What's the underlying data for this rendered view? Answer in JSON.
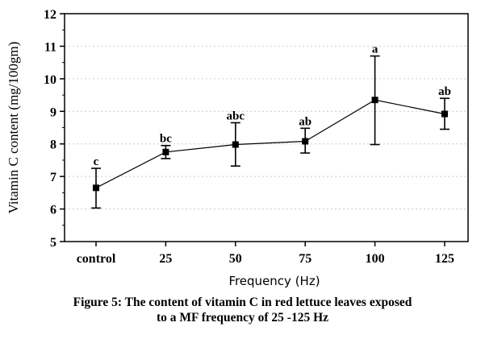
{
  "chart_data": {
    "type": "line",
    "title": "",
    "xlabel": "Frequency (Hz)",
    "ylabel": "Vitamin C content (mg/100gm)",
    "categories": [
      "control",
      "25",
      "50",
      "75",
      "100",
      "125"
    ],
    "values": [
      6.65,
      7.75,
      7.98,
      8.08,
      9.35,
      8.92
    ],
    "error_lower": [
      6.03,
      7.55,
      7.32,
      7.72,
      7.98,
      8.45
    ],
    "error_upper": [
      7.25,
      7.95,
      8.65,
      8.48,
      10.7,
      9.4
    ],
    "significance_labels": [
      "c",
      "bc",
      "abc",
      "ab",
      "a",
      "ab"
    ],
    "yticks": [
      "5",
      "6",
      "7",
      "8",
      "9",
      "10",
      "11",
      "12"
    ],
    "ylim": [
      5,
      12
    ],
    "grid": "horizontal dotted",
    "marker": "square"
  },
  "caption": {
    "line1": "Figure 5: The content of vitamin C in red lettuce leaves exposed",
    "line2": "to a MF frequency of 25 -125 Hz"
  }
}
